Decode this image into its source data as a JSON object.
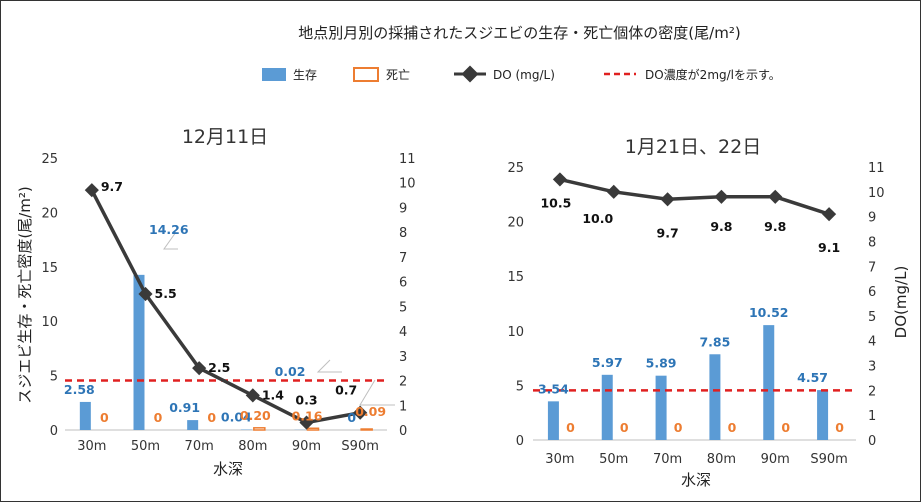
{
  "main_title": "地点別月別の採捕されたスジエビの生存・死亡個体の密度(尾/m²)",
  "legend": [
    {
      "key": "alive",
      "label": "生存"
    },
    {
      "key": "dead",
      "label": "死亡"
    },
    {
      "key": "do",
      "label": "DO (mg/L)"
    },
    {
      "key": "ref",
      "label": "DO濃度が2mg/lを示す。"
    }
  ],
  "colors": {
    "alive": "#5b9bd5",
    "dead": "#ed7d31",
    "do": "#3a3a3a",
    "ref": "#e02020",
    "alive_label": "#2e75b6",
    "dead_label": "#ed7d31",
    "do_label": "#111111"
  },
  "chart_data": [
    {
      "type": "bar",
      "title": "12月11日",
      "categories": [
        "30m",
        "50m",
        "70m",
        "80m",
        "90m",
        "S90m"
      ],
      "xlabel": "水深",
      "ylabel": "スジエビ生存・死亡密度(尾/m²)",
      "y2label": "",
      "ylim": [
        0,
        25
      ],
      "y2lim": [
        0,
        11
      ],
      "yticks": [
        "0",
        "5",
        "10",
        "15",
        "20",
        "25"
      ],
      "y2ticks": [
        "0",
        "1",
        "2",
        "3",
        "4",
        "5",
        "6",
        "7",
        "8",
        "9",
        "10",
        "11"
      ],
      "series": [
        {
          "name": "生存",
          "values": [
            2.58,
            14.26,
            0.91,
            0.04,
            0.02,
            0
          ],
          "labels": [
            "2.58",
            "14.26",
            "0.91",
            "0.04",
            "0.02",
            "0"
          ]
        },
        {
          "name": "死亡",
          "values": [
            0,
            0,
            0,
            0.2,
            0.16,
            0.09
          ],
          "labels": [
            "0",
            "0",
            "0",
            "0.20",
            "0.16",
            "0.09"
          ]
        },
        {
          "name": "DO (mg/L)",
          "values": [
            9.7,
            5.5,
            2.5,
            1.4,
            0.3,
            0.7
          ],
          "labels": [
            "9.7",
            "5.5",
            "2.5",
            "1.4",
            "0.3",
            "0.7"
          ],
          "axis": "secondary"
        }
      ],
      "reference_line": {
        "axis": "secondary",
        "value": 2
      }
    },
    {
      "type": "bar",
      "title": "1月21日、22日",
      "categories": [
        "30m",
        "50m",
        "70m",
        "80m",
        "90m",
        "S90m"
      ],
      "xlabel": "水深",
      "ylabel": "",
      "y2label": "DO(mg/L)",
      "ylim": [
        0,
        25
      ],
      "y2lim": [
        0,
        11
      ],
      "yticks": [
        "0",
        "5",
        "10",
        "15",
        "20",
        "25"
      ],
      "y2ticks": [
        "0",
        "1",
        "2",
        "3",
        "4",
        "5",
        "6",
        "7",
        "8",
        "9",
        "10",
        "11"
      ],
      "series": [
        {
          "name": "生存",
          "values": [
            3.54,
            5.97,
            5.89,
            7.85,
            10.52,
            4.57
          ],
          "labels": [
            "3.54",
            "5.97",
            "5.89",
            "7.85",
            "10.52",
            "4.57"
          ]
        },
        {
          "name": "死亡",
          "values": [
            0,
            0,
            0,
            0,
            0,
            0
          ],
          "labels": [
            "0",
            "0",
            "0",
            "0",
            "0",
            "0"
          ]
        },
        {
          "name": "DO (mg/L)",
          "values": [
            10.5,
            10.0,
            9.7,
            9.8,
            9.8,
            9.1
          ],
          "labels": [
            "10.5",
            "10.0",
            "9.7",
            "9.8",
            "9.8",
            "9.1"
          ],
          "axis": "secondary"
        }
      ],
      "reference_line": {
        "axis": "secondary",
        "value": 2
      }
    }
  ]
}
